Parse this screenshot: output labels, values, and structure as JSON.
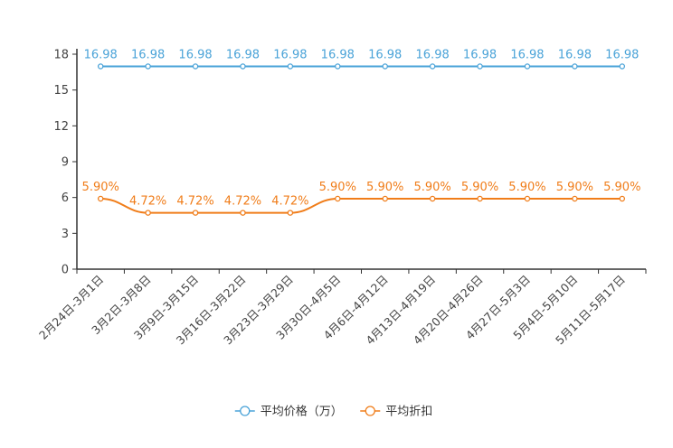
{
  "chart_data": {
    "type": "line",
    "title": "",
    "xlabel": "",
    "ylabel": "",
    "ylim": [
      0,
      18
    ],
    "yticks": [
      0,
      3,
      6,
      9,
      12,
      15,
      18
    ],
    "categories": [
      "2月24日-3月1日",
      "3月2日-3月8日",
      "3月9日-3月15日",
      "3月16日-3月22日",
      "3月23日-3月29日",
      "3月30日-4月5日",
      "4月6日-4月12日",
      "4月13日-4月19日",
      "4月20日-4月26日",
      "4月27日-5月3日",
      "5月4日-5月10日",
      "5月11日-5月17日"
    ],
    "series": [
      {
        "name": "平均价格（万）",
        "color": "#4aa3d8",
        "values": [
          16.98,
          16.98,
          16.98,
          16.98,
          16.98,
          16.98,
          16.98,
          16.98,
          16.98,
          16.98,
          16.98,
          16.98
        ],
        "labels": [
          "16.98",
          "16.98",
          "16.98",
          "16.98",
          "16.98",
          "16.98",
          "16.98",
          "16.98",
          "16.98",
          "16.98",
          "16.98",
          "16.98"
        ]
      },
      {
        "name": "平均折扣",
        "color": "#f07d1a",
        "values": [
          5.9,
          4.72,
          4.72,
          4.72,
          4.72,
          5.9,
          5.9,
          5.9,
          5.9,
          5.9,
          5.9,
          5.9
        ],
        "labels": [
          "5.90%",
          "4.72%",
          "4.72%",
          "4.72%",
          "4.72%",
          "5.90%",
          "5.90%",
          "5.90%",
          "5.90%",
          "5.90%",
          "5.90%",
          "5.90%"
        ]
      }
    ],
    "legend": "bottom-center"
  }
}
